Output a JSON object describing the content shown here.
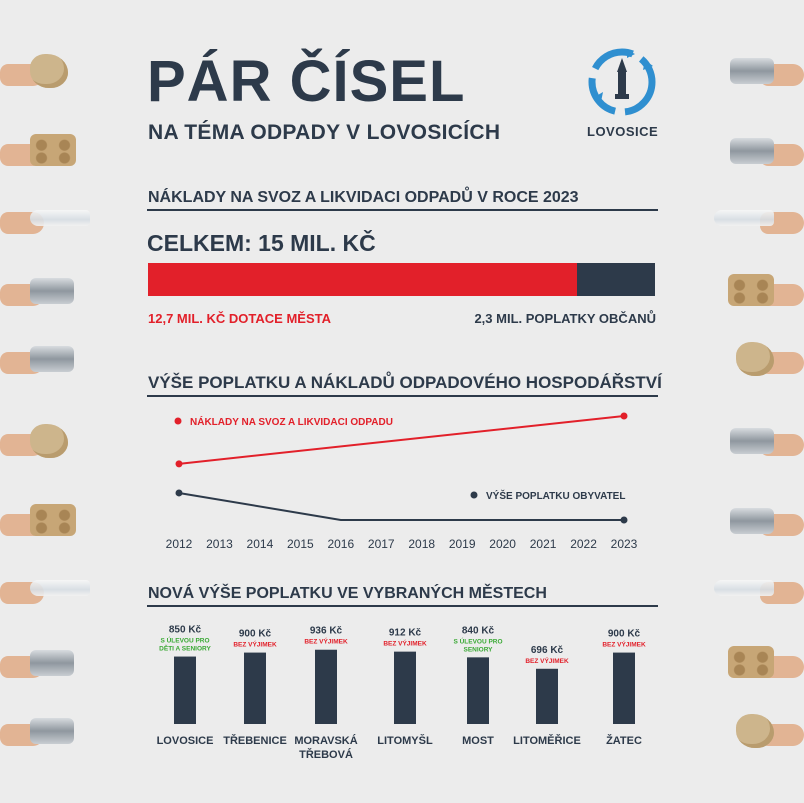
{
  "header": {
    "title": "PÁR ČÍSEL",
    "subtitle": "NA TÉMA ODPADY V LOVOSICÍCH",
    "logo_text": "LOVOSICE"
  },
  "colors": {
    "navy": "#2d3a4a",
    "red": "#e2202a",
    "green": "#3aa935",
    "logo_blue": "#2f8fd0"
  },
  "chart_data": [
    {
      "type": "bar",
      "title": "NÁKLADY NA SVOZ A LIKVIDACI ODPADŮ V ROCE 2023",
      "total_label": "CELKEM: 15 MIL. KČ",
      "total": 15,
      "stacked": true,
      "series": [
        {
          "name": "12,7 MIL. KČ DOTACE MĚSTA",
          "value": 12.7,
          "color": "#e2202a"
        },
        {
          "name": "2,3 MIL. POPLATKY OBČANŮ",
          "value": 2.3,
          "color": "#2d3a4a"
        }
      ]
    },
    {
      "type": "line",
      "title": "VÝŠE POPLATKU A NÁKLADŮ ODPADOVÉHO HOSPODÁŘSTVÍ",
      "x": [
        "2012",
        "2013",
        "2014",
        "2015",
        "2016",
        "2017",
        "2018",
        "2019",
        "2020",
        "2021",
        "2022",
        "2023"
      ],
      "series": [
        {
          "name": "NÁKLADY NA SVOZ A LIKVIDACI ODPADU",
          "color": "#e2202a",
          "points": [
            {
              "x": "2012",
              "y": 0.54
            },
            {
              "x": "2023",
              "y": 1.0
            }
          ]
        },
        {
          "name": "VÝŠE POPLATKU OBYVATEL",
          "color": "#2d3a4a",
          "points": [
            {
              "x": "2012",
              "y": 0.26
            },
            {
              "x": "2016",
              "y": 0.0
            },
            {
              "x": "2023",
              "y": 0.0
            }
          ]
        }
      ],
      "grid": false,
      "y_axis_labels": false
    },
    {
      "type": "bar",
      "title": "NOVÁ VÝŠE POPLATKU VE VYBRANÝCH MĚSTECH",
      "categories": [
        "LOVOSICE",
        "TŘEBENICE",
        "MORAVSKÁ TŘEBOVÁ",
        "LITOMYŠL",
        "MOST",
        "LITOMĚŘICE",
        "ŽATEC"
      ],
      "category_lines": [
        [
          "LOVOSICE"
        ],
        [
          "TŘEBENICE"
        ],
        [
          "MORAVSKÁ",
          "TŘEBOVÁ"
        ],
        [
          "LITOMYŠL"
        ],
        [
          "MOST"
        ],
        [
          "LITOMĚŘICE"
        ],
        [
          "ŽATEC"
        ]
      ],
      "values": [
        850,
        900,
        936,
        912,
        840,
        696,
        900
      ],
      "value_labels": [
        "850 Kč",
        "900 Kč",
        "936 Kč",
        "912 Kč",
        "840 Kč",
        "696 Kč",
        "900 Kč"
      ],
      "notes": [
        [
          "S ÚLEVOU PRO",
          "DĚTI A SENIORY"
        ],
        [
          "BEZ VÝJIMEK"
        ],
        [
          "BEZ VÝJIMEK"
        ],
        [
          "BEZ VÝJIMEK"
        ],
        [
          "S ÚLEVOU PRO",
          "SENIORY"
        ],
        [
          "BEZ VÝJIMEK"
        ],
        [
          "BEZ VÝJIMEK"
        ]
      ],
      "note_colors": [
        "#3aa935",
        "#e2202a",
        "#e2202a",
        "#e2202a",
        "#3aa935",
        "#e2202a",
        "#e2202a"
      ]
    }
  ],
  "decorations": {
    "left": [
      "paper-ball-icon",
      "egg-carton-icon",
      "plastic-bottle-icon",
      "tin-can-icon",
      "tin-can-icon",
      "paper-ball-icon",
      "egg-carton-icon",
      "plastic-bottle-icon",
      "tin-can-icon",
      "tin-can-icon"
    ],
    "right": [
      "tin-can-icon",
      "tin-can-icon",
      "plastic-bottle-icon",
      "egg-carton-icon",
      "paper-ball-icon",
      "tin-can-icon",
      "tin-can-icon",
      "plastic-bottle-icon",
      "egg-carton-icon",
      "paper-ball-icon"
    ]
  }
}
